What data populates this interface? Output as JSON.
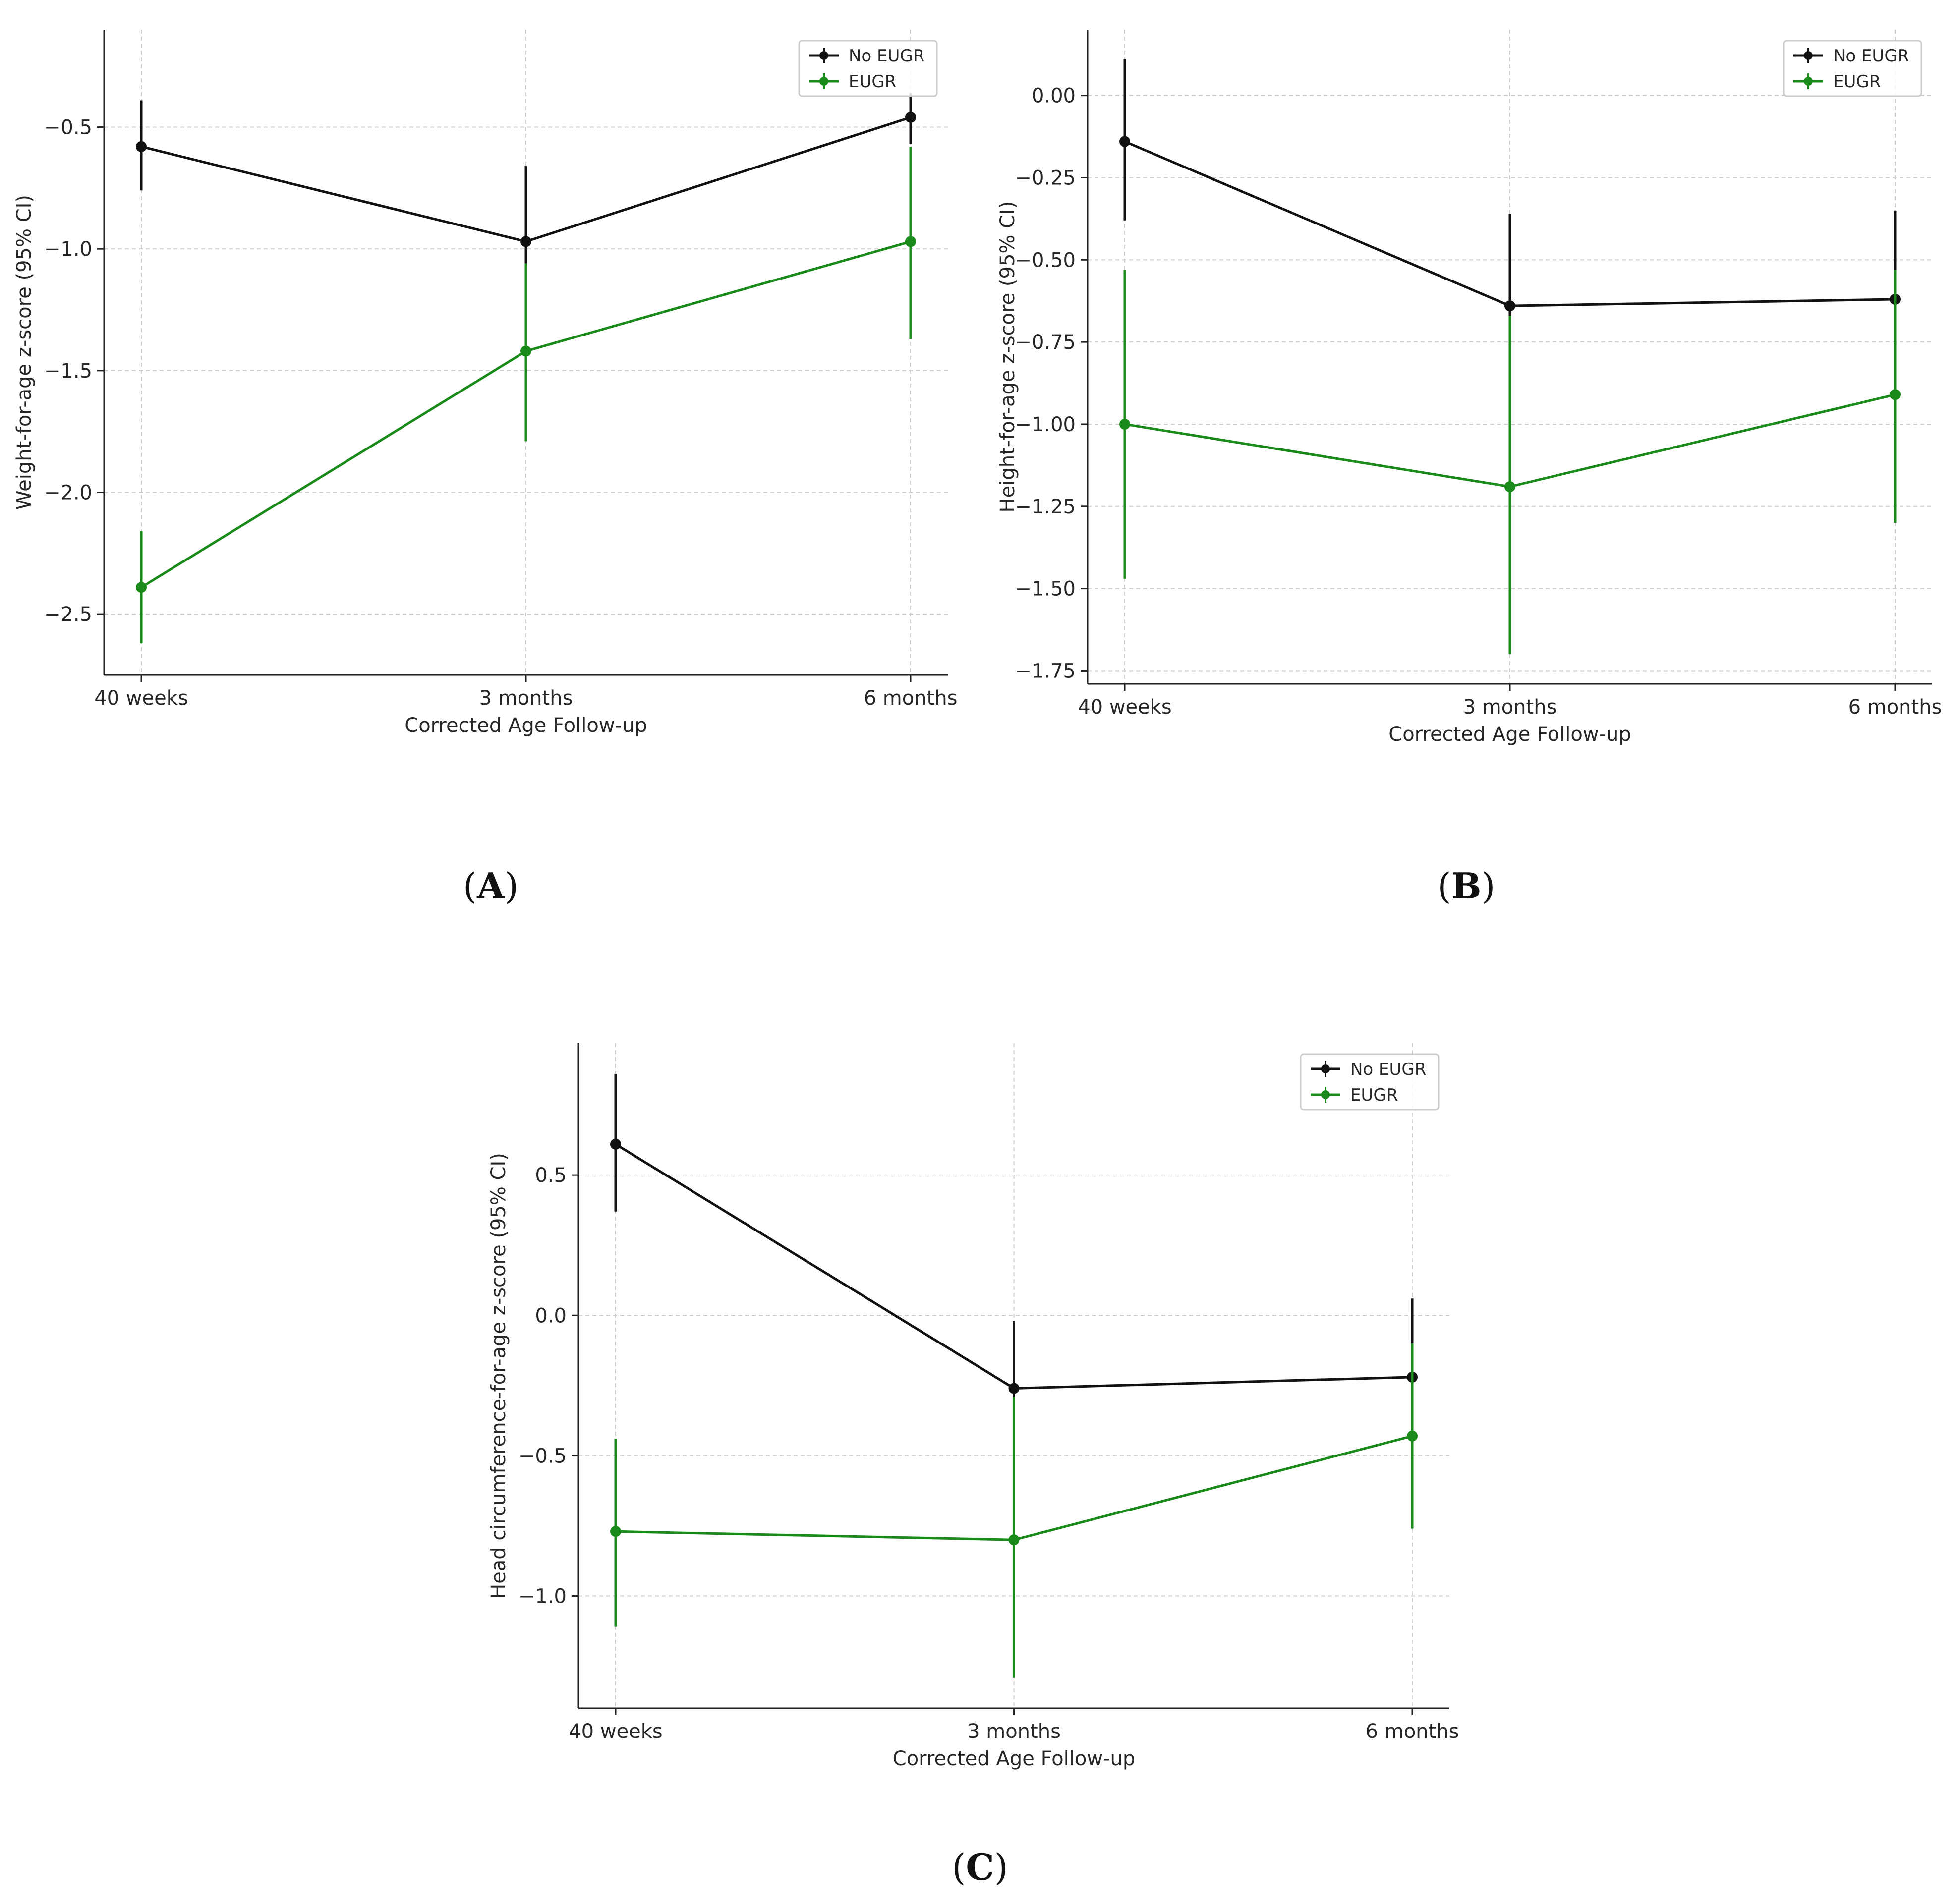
{
  "colors": {
    "no_eugr": "#111111",
    "eugr": "#1a8a1a",
    "grid": "#cccccc",
    "axis": "#222222"
  },
  "panel_labels": [
    {
      "open": "(",
      "letter": "A",
      "close": ")"
    },
    {
      "open": "(",
      "letter": "B",
      "close": ")"
    },
    {
      "open": "(",
      "letter": "C",
      "close": ")"
    }
  ],
  "chart_data": [
    {
      "type": "line",
      "panel": "A",
      "title": "",
      "categories": [
        "40 weeks",
        "3 months",
        "6 months"
      ],
      "xlabel": "Corrected Age Follow-up",
      "ylabel": "Weight-for-age z-score (95% CI)",
      "ylim": [
        -2.75,
        -0.1
      ],
      "yticks": [
        -2.5,
        -2.0,
        -1.5,
        -1.0,
        -0.5
      ],
      "ytick_labels": [
        "−2.5",
        "−2.0",
        "−1.5",
        "−1.0",
        "−0.5"
      ],
      "grid": true,
      "legend": "top-right",
      "series": [
        {
          "name": "No EUGR",
          "color_key": "no_eugr",
          "values": [
            -0.58,
            -0.97,
            -0.46
          ],
          "ci_low": [
            -0.76,
            -1.06,
            -0.57
          ],
          "ci_high": [
            -0.39,
            -0.66,
            -0.36
          ]
        },
        {
          "name": "EUGR",
          "color_key": "eugr",
          "values": [
            -2.39,
            -1.42,
            -0.97
          ],
          "ci_low": [
            -2.62,
            -1.79,
            -1.37
          ],
          "ci_high": [
            -2.16,
            -1.06,
            -0.58
          ]
        }
      ]
    },
    {
      "type": "line",
      "panel": "B",
      "title": "",
      "categories": [
        "40 weeks",
        "3 months",
        "6 months"
      ],
      "xlabel": "Corrected Age Follow-up",
      "ylabel": "Height-for-age z-score (95% CI)",
      "ylim": [
        -1.79,
        0.2
      ],
      "yticks": [
        -1.75,
        -1.5,
        -1.25,
        -1.0,
        -0.75,
        -0.5,
        -0.25,
        0.0
      ],
      "ytick_labels": [
        "−1.75",
        "−1.50",
        "−1.25",
        "−1.00",
        "−0.75",
        "−0.50",
        "−0.25",
        "0.00"
      ],
      "grid": true,
      "legend": "top-right",
      "series": [
        {
          "name": "No EUGR",
          "color_key": "no_eugr",
          "values": [
            -0.14,
            -0.64,
            -0.62
          ],
          "ci_low": [
            -0.38,
            -0.67,
            -0.53
          ],
          "ci_high": [
            0.11,
            -0.36,
            -0.35
          ]
        },
        {
          "name": "EUGR",
          "color_key": "eugr",
          "values": [
            -1.0,
            -1.19,
            -0.91
          ],
          "ci_low": [
            -1.47,
            -1.7,
            -1.3
          ],
          "ci_high": [
            -0.53,
            -0.67,
            -0.53
          ]
        }
      ]
    },
    {
      "type": "line",
      "panel": "C",
      "title": "",
      "categories": [
        "40 weeks",
        "3 months",
        "6 months"
      ],
      "xlabel": "Corrected Age Follow-up",
      "ylabel": "Head circumference-for-age z-score (95% CI)",
      "ylim": [
        -1.4,
        0.97
      ],
      "yticks": [
        -1.0,
        -0.5,
        0.0,
        0.5
      ],
      "ytick_labels": [
        "−1.0",
        "−0.5",
        "0.0",
        "0.5"
      ],
      "grid": true,
      "legend": "top-right",
      "series": [
        {
          "name": "No EUGR",
          "color_key": "no_eugr",
          "values": [
            0.61,
            -0.26,
            -0.22
          ],
          "ci_low": [
            0.37,
            -0.32,
            -0.1
          ],
          "ci_high": [
            0.86,
            -0.02,
            0.06
          ]
        },
        {
          "name": "EUGR",
          "color_key": "eugr",
          "values": [
            -0.77,
            -0.8,
            -0.43
          ],
          "ci_low": [
            -1.11,
            -1.29,
            -0.76
          ],
          "ci_high": [
            -0.44,
            -0.29,
            -0.1
          ]
        }
      ]
    }
  ]
}
